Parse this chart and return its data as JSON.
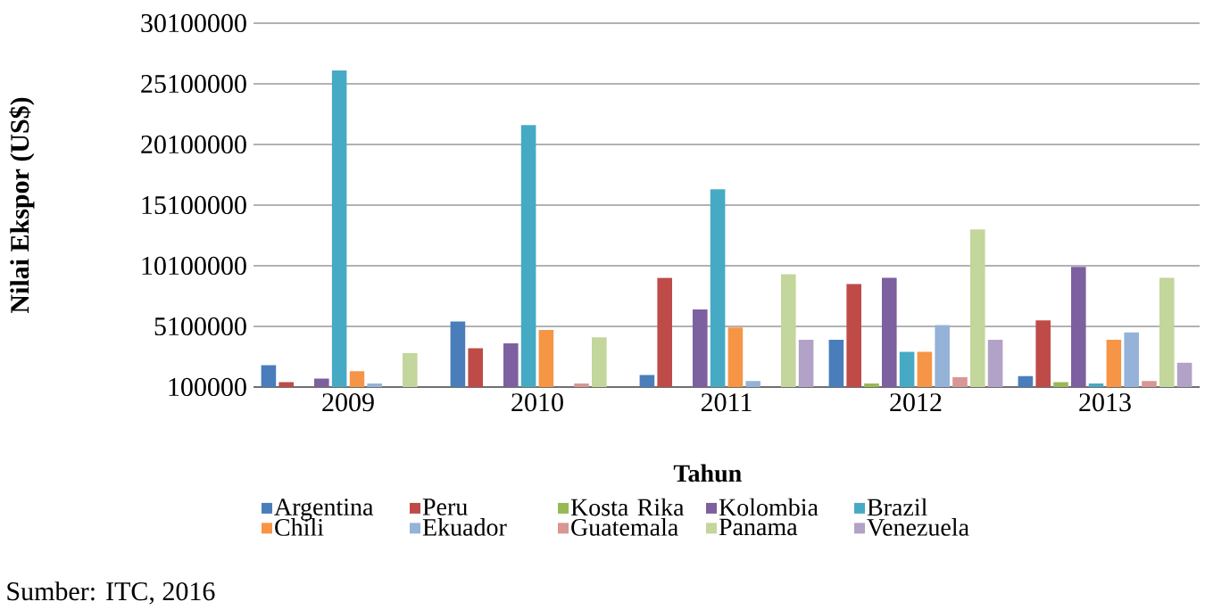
{
  "chart_data": {
    "type": "bar",
    "xlabel": "Tahun",
    "ylabel": "Nilai Ekspor (US$)",
    "categories": [
      "2009",
      "2010",
      "2011",
      "2012",
      "2013"
    ],
    "ylim": [
      100000,
      30100000
    ],
    "yticks": [
      100000,
      5100000,
      10100000,
      15100000,
      20100000,
      25100000,
      30100000
    ],
    "grid": "y",
    "legend": "bottom",
    "annotations": [
      "Sumber: ITC, 2016"
    ],
    "series": [
      {
        "name": "Argentina",
        "color": "#4a7ebb",
        "values": [
          1900000,
          5500000,
          1100000,
          4000000,
          1000000
        ]
      },
      {
        "name": "Peru",
        "color": "#be4b48",
        "values": [
          500000,
          3300000,
          9100000,
          8600000,
          5600000
        ]
      },
      {
        "name": "Kosta Rika",
        "color": "#98b954",
        "values": [
          100000,
          100000,
          100000,
          400000,
          500000
        ]
      },
      {
        "name": "Kolombia",
        "color": "#7d60a0",
        "values": [
          800000,
          3700000,
          6500000,
          9100000,
          10000000
        ]
      },
      {
        "name": "Brazil",
        "color": "#46aac5",
        "values": [
          26200000,
          21700000,
          16400000,
          3000000,
          400000
        ]
      },
      {
        "name": "Chili",
        "color": "#f69546",
        "values": [
          1400000,
          4800000,
          5000000,
          3000000,
          4000000
        ]
      },
      {
        "name": "Ekuador",
        "color": "#95b3d8",
        "values": [
          400000,
          100000,
          600000,
          5200000,
          4600000
        ]
      },
      {
        "name": "Guatemala",
        "color": "#d99694",
        "values": [
          100000,
          400000,
          100000,
          900000,
          600000
        ]
      },
      {
        "name": "Panama",
        "color": "#c3d69b",
        "values": [
          2900000,
          4200000,
          9400000,
          13100000,
          9100000
        ]
      },
      {
        "name": "Venezuela",
        "color": "#b3a2c7",
        "values": [
          100000,
          100000,
          4000000,
          4000000,
          2100000
        ]
      }
    ]
  }
}
